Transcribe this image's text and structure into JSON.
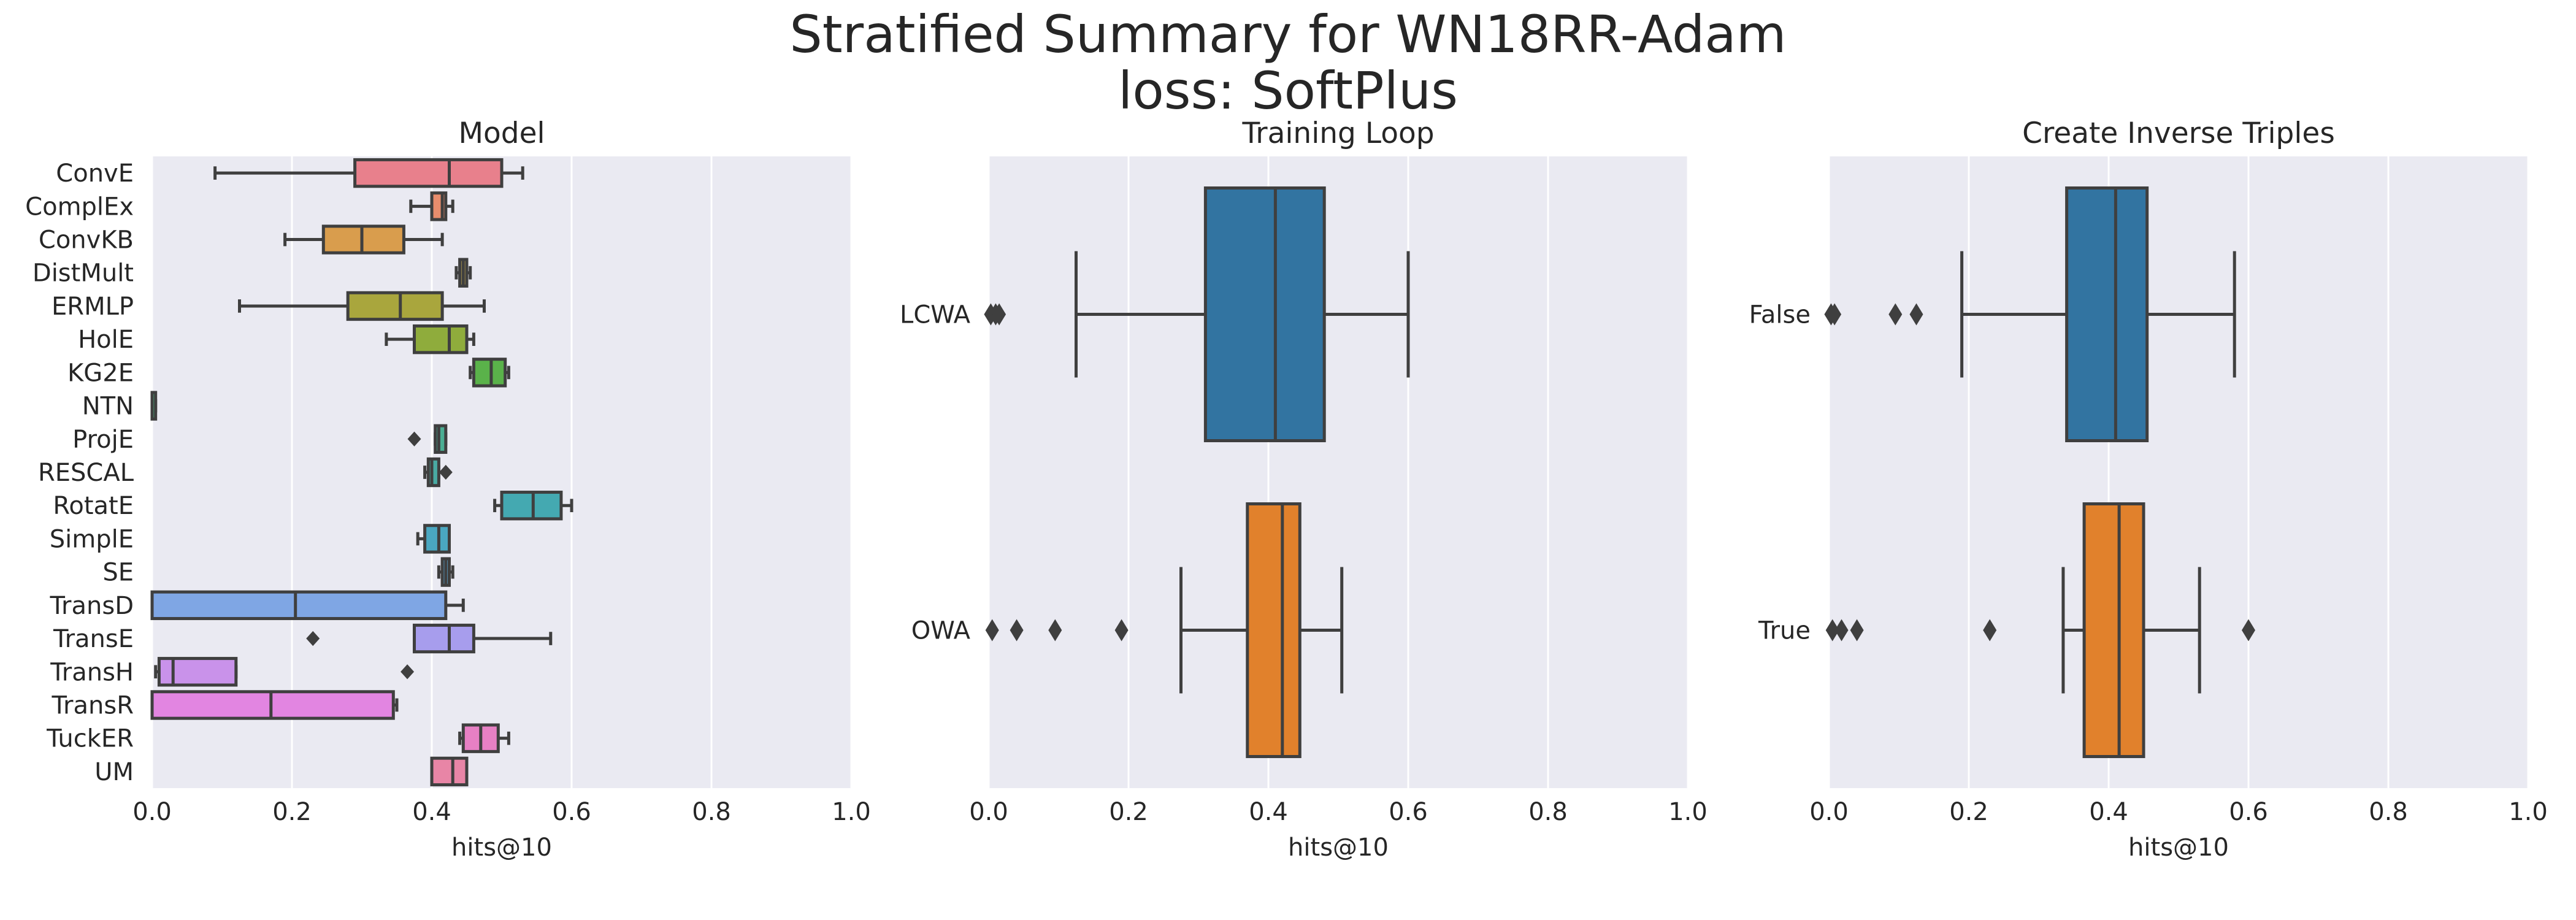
{
  "figure": {
    "title_line1": "Stratified Summary for WN18RR-Adam",
    "title_line2": "loss: SoftPlus"
  },
  "chart_data": [
    {
      "type": "boxplot",
      "title": "Model",
      "xlabel": "hits@10",
      "ylabel": "",
      "xlim": [
        0,
        1
      ],
      "xticks": [
        "0.0",
        "0.2",
        "0.4",
        "0.6",
        "0.8",
        "1.0"
      ],
      "grid": true,
      "categories": [
        "ConvE",
        "ComplEx",
        "ConvKB",
        "DistMult",
        "ERMLP",
        "HolE",
        "KG2E",
        "NTN",
        "ProjE",
        "RESCAL",
        "RotatE",
        "SimplE",
        "SE",
        "TransD",
        "TransE",
        "TransH",
        "TransR",
        "TuckER",
        "UM"
      ],
      "boxes": [
        {
          "label": "ConvE",
          "color": "#e8808c",
          "whislo": 0.09,
          "q1": 0.29,
          "med": 0.425,
          "q3": 0.5,
          "whishi": 0.53,
          "fliers": []
        },
        {
          "label": "ComplEx",
          "color": "#e88d6d",
          "whislo": 0.37,
          "q1": 0.4,
          "med": 0.415,
          "q3": 0.42,
          "whishi": 0.43,
          "fliers": []
        },
        {
          "label": "ConvKB",
          "color": "#d99d4d",
          "whislo": 0.19,
          "q1": 0.245,
          "med": 0.3,
          "q3": 0.36,
          "whishi": 0.415,
          "fliers": []
        },
        {
          "label": "DistMult",
          "color": "#b8a14f",
          "whislo": 0.435,
          "q1": 0.44,
          "med": 0.445,
          "q3": 0.45,
          "whishi": 0.455,
          "fliers": []
        },
        {
          "label": "ERMLP",
          "color": "#a9a63d",
          "whislo": 0.125,
          "q1": 0.28,
          "med": 0.355,
          "q3": 0.415,
          "whishi": 0.475,
          "fliers": []
        },
        {
          "label": "HolE",
          "color": "#8fac3c",
          "whislo": 0.335,
          "q1": 0.375,
          "med": 0.425,
          "q3": 0.45,
          "whishi": 0.46,
          "fliers": []
        },
        {
          "label": "KG2E",
          "color": "#5ab24a",
          "whislo": 0.455,
          "q1": 0.46,
          "med": 0.485,
          "q3": 0.505,
          "whishi": 0.51,
          "fliers": []
        },
        {
          "label": "NTN",
          "color": "#4bb27e",
          "whislo": 0.0,
          "q1": 0.0,
          "med": 0.0,
          "q3": 0.005,
          "whishi": 0.005,
          "fliers": []
        },
        {
          "label": "ProjE",
          "color": "#4aae93",
          "whislo": 0.405,
          "q1": 0.405,
          "med": 0.41,
          "q3": 0.42,
          "whishi": 0.42,
          "fliers": [
            0.375
          ]
        },
        {
          "label": "RESCAL",
          "color": "#49aba3",
          "whislo": 0.39,
          "q1": 0.395,
          "med": 0.4,
          "q3": 0.41,
          "whishi": 0.41,
          "fliers": [
            0.42
          ]
        },
        {
          "label": "RotatE",
          "color": "#44a9b1",
          "whislo": 0.49,
          "q1": 0.5,
          "med": 0.545,
          "q3": 0.585,
          "whishi": 0.6,
          "fliers": []
        },
        {
          "label": "SimplE",
          "color": "#4aa7c1",
          "whislo": 0.38,
          "q1": 0.39,
          "med": 0.41,
          "q3": 0.425,
          "whishi": 0.425,
          "fliers": []
        },
        {
          "label": "SE",
          "color": "#59a5d3",
          "whislo": 0.41,
          "q1": 0.415,
          "med": 0.42,
          "q3": 0.425,
          "whishi": 0.43,
          "fliers": []
        },
        {
          "label": "TransD",
          "color": "#7fa6e4",
          "whislo": 0.0,
          "q1": 0.0,
          "med": 0.205,
          "q3": 0.42,
          "whishi": 0.445,
          "fliers": []
        },
        {
          "label": "TransE",
          "color": "#a79ded",
          "whislo": 0.375,
          "q1": 0.375,
          "med": 0.425,
          "q3": 0.46,
          "whishi": 0.57,
          "fliers": [
            0.23
          ]
        },
        {
          "label": "TransH",
          "color": "#c992ea",
          "whislo": 0.005,
          "q1": 0.01,
          "med": 0.03,
          "q3": 0.12,
          "whishi": 0.12,
          "fliers": [
            0.365
          ]
        },
        {
          "label": "TransR",
          "color": "#e285e1",
          "whislo": 0.0,
          "q1": 0.0,
          "med": 0.17,
          "q3": 0.345,
          "whishi": 0.35,
          "fliers": []
        },
        {
          "label": "TuckER",
          "color": "#e780c4",
          "whislo": 0.44,
          "q1": 0.445,
          "med": 0.47,
          "q3": 0.495,
          "whishi": 0.51,
          "fliers": []
        },
        {
          "label": "UM",
          "color": "#e885a6",
          "whislo": 0.4,
          "q1": 0.4,
          "med": 0.43,
          "q3": 0.45,
          "whishi": 0.45,
          "fliers": []
        }
      ]
    },
    {
      "type": "boxplot",
      "title": "Training Loop",
      "xlabel": "hits@10",
      "ylabel": "",
      "xlim": [
        0,
        1
      ],
      "xticks": [
        "0.0",
        "0.2",
        "0.4",
        "0.6",
        "0.8",
        "1.0"
      ],
      "grid": true,
      "categories": [
        "LCWA",
        "OWA"
      ],
      "boxes": [
        {
          "label": "LCWA",
          "color": "#3274a1",
          "whislo": 0.125,
          "q1": 0.31,
          "med": 0.41,
          "q3": 0.48,
          "whishi": 0.6,
          "fliers": [
            0.003,
            0.01,
            0.015
          ]
        },
        {
          "label": "OWA",
          "color": "#e1812c",
          "whislo": 0.275,
          "q1": 0.37,
          "med": 0.42,
          "q3": 0.445,
          "whishi": 0.505,
          "fliers": [
            0.005,
            0.04,
            0.095,
            0.19
          ]
        }
      ]
    },
    {
      "type": "boxplot",
      "title": "Create Inverse Triples",
      "xlabel": "hits@10",
      "ylabel": "",
      "xlim": [
        0,
        1
      ],
      "xticks": [
        "0.0",
        "0.2",
        "0.4",
        "0.6",
        "0.8",
        "1.0"
      ],
      "grid": true,
      "categories": [
        "False",
        "True"
      ],
      "boxes": [
        {
          "label": "False",
          "color": "#3274a1",
          "whislo": 0.19,
          "q1": 0.34,
          "med": 0.41,
          "q3": 0.455,
          "whishi": 0.58,
          "fliers": [
            0.003,
            0.008,
            0.095,
            0.125
          ]
        },
        {
          "label": "True",
          "color": "#e1812c",
          "whislo": 0.335,
          "q1": 0.365,
          "med": 0.415,
          "q3": 0.45,
          "whishi": 0.53,
          "fliers": [
            0.005,
            0.018,
            0.04,
            0.23,
            0.6
          ]
        }
      ]
    }
  ]
}
